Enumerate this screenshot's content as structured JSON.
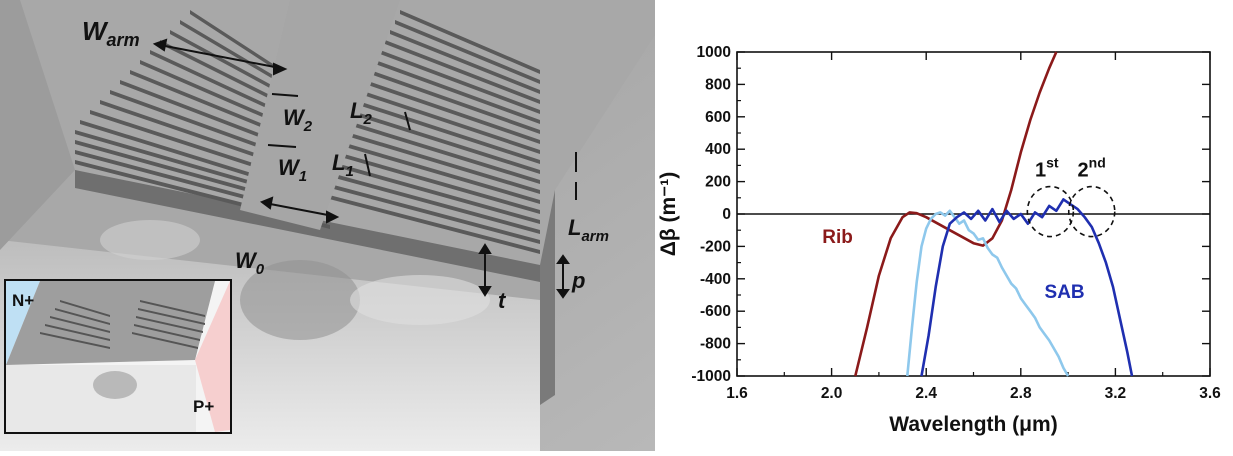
{
  "left_panel": {
    "labels": {
      "w_arm": "W",
      "w_arm_sub": "arm",
      "w2": "W",
      "w2_sub": "2",
      "w1": "W",
      "w1_sub": "1",
      "l2": "L",
      "l2_sub": "2",
      "l1": "L",
      "l1_sub": "1",
      "l_arm": "L",
      "l_arm_sub": "arm",
      "w0": "W",
      "w0_sub": "0",
      "t": "t",
      "p": "p"
    },
    "inset": {
      "n_label": "N+",
      "p_label": "P+"
    }
  },
  "chart_data": {
    "type": "line",
    "xlabel": "Wavelength (μm)",
    "ylabel": "Δβ (m⁻¹)",
    "xlim": [
      1.6,
      3.6
    ],
    "ylim": [
      -1000,
      1000
    ],
    "x_ticks": [
      "1.6",
      "2.0",
      "2.4",
      "2.8",
      "3.2",
      "3.6"
    ],
    "y_ticks": [
      "1000",
      "800",
      "600",
      "400",
      "200",
      "0",
      "-200",
      "-400",
      "-600",
      "-800",
      "-1000"
    ],
    "series": [
      {
        "name": "Rib",
        "color": "#8b1a1a",
        "x": [
          2.1,
          2.15,
          2.2,
          2.25,
          2.3,
          2.33,
          2.36,
          2.4,
          2.45,
          2.5,
          2.55,
          2.6,
          2.64,
          2.68,
          2.72,
          2.76,
          2.8,
          2.84,
          2.88,
          2.92,
          2.95
        ],
        "y": [
          -1000,
          -700,
          -380,
          -150,
          -20,
          10,
          5,
          -20,
          -60,
          -100,
          -140,
          -180,
          -195,
          -150,
          -40,
          150,
          380,
          580,
          750,
          900,
          1000
        ]
      },
      {
        "name": "",
        "color": "#8ec8ec",
        "x": [
          2.32,
          2.34,
          2.36,
          2.38,
          2.4,
          2.42,
          2.44,
          2.46,
          2.48,
          2.5,
          2.52,
          2.54,
          2.56,
          2.58,
          2.6,
          2.62,
          2.64,
          2.66,
          2.68,
          2.7,
          2.72,
          2.74,
          2.76,
          2.78,
          2.8,
          2.82,
          2.84,
          2.86,
          2.88,
          2.9,
          2.92,
          2.94,
          2.96,
          2.98,
          3.0
        ],
        "y": [
          -1000,
          -700,
          -420,
          -200,
          -90,
          -30,
          0,
          10,
          -10,
          20,
          -20,
          -60,
          -40,
          -100,
          -120,
          -160,
          -150,
          -210,
          -250,
          -270,
          -330,
          -380,
          -430,
          -460,
          -520,
          -560,
          -600,
          -640,
          -700,
          -740,
          -780,
          -830,
          -880,
          -950,
          -1000
        ]
      },
      {
        "name": "SAB",
        "color": "#1f2fb0",
        "x": [
          2.38,
          2.41,
          2.44,
          2.47,
          2.5,
          2.53,
          2.56,
          2.59,
          2.62,
          2.65,
          2.68,
          2.71,
          2.74,
          2.77,
          2.8,
          2.83,
          2.86,
          2.89,
          2.92,
          2.95,
          2.98,
          3.01,
          3.04,
          3.07,
          3.1,
          3.13,
          3.16,
          3.19,
          3.22,
          3.25,
          3.27
        ],
        "y": [
          -1000,
          -750,
          -450,
          -200,
          -60,
          -20,
          10,
          -30,
          20,
          -40,
          30,
          -50,
          20,
          -30,
          0,
          -60,
          10,
          -20,
          50,
          20,
          90,
          60,
          30,
          -20,
          -80,
          -180,
          -300,
          -450,
          -650,
          -850,
          -1000
        ]
      }
    ],
    "annotations": [
      {
        "text": "Rib",
        "color": "#8b1a1a"
      },
      {
        "text": "SAB",
        "color": "#1f2fb0"
      },
      {
        "text": "1",
        "sup": "st",
        "color": "#111111"
      },
      {
        "text": "2",
        "sup": "nd",
        "color": "#111111"
      }
    ],
    "grid": false
  }
}
